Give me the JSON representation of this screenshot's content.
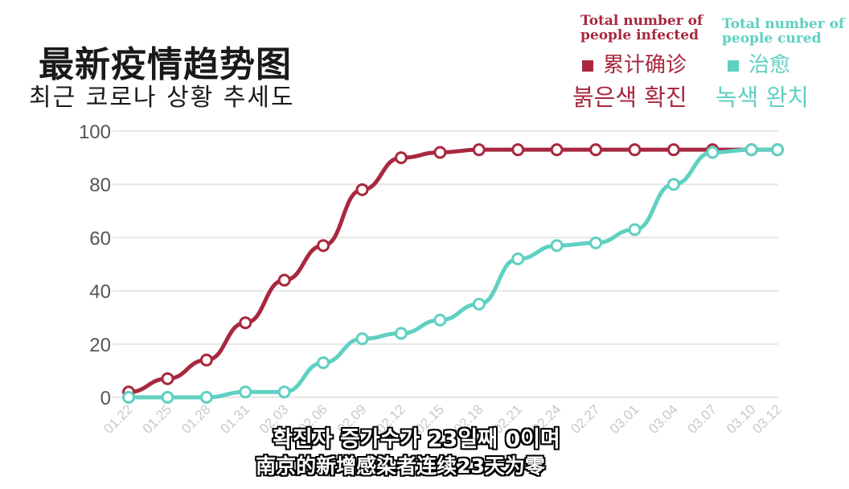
{
  "chart_data": {
    "type": "line",
    "title": "最新疫情趋势图",
    "subtitle": "최근 코로나 상황 추세도",
    "categories": [
      "01.22",
      "01.25",
      "01.28",
      "01.31",
      "02.03",
      "02.06",
      "02.09",
      "02.12",
      "02.15",
      "02.18",
      "02.21",
      "02.24",
      "02.27",
      "03.01",
      "03.04",
      "03.07",
      "03.10",
      "03.12"
    ],
    "series": [
      {
        "name": "Total number of people infected",
        "name_cn": "累计确诊",
        "name_kr": "붉은색 확진",
        "color": "#a8283f",
        "values": [
          2,
          7,
          14,
          28,
          44,
          57,
          78,
          90,
          92,
          93,
          93,
          93,
          93,
          93,
          93,
          93,
          93,
          93
        ]
      },
      {
        "name": "Total number of people cured",
        "name_cn": "治愈",
        "name_kr": "녹색 완치",
        "color": "#5fd0c2",
        "values": [
          0,
          0,
          0,
          2,
          2,
          13,
          22,
          24,
          29,
          35,
          52,
          57,
          58,
          63,
          80,
          92,
          93,
          93
        ]
      }
    ],
    "ylim": [
      0,
      100
    ],
    "yticks": [
      "0",
      "20",
      "40",
      "60",
      "80",
      "100"
    ],
    "grid": true,
    "legend": "top-right"
  },
  "caption": {
    "line1": "확진자 증가수가 23일째 0이며",
    "line2": "南京的新增感染者连续23天为零"
  }
}
